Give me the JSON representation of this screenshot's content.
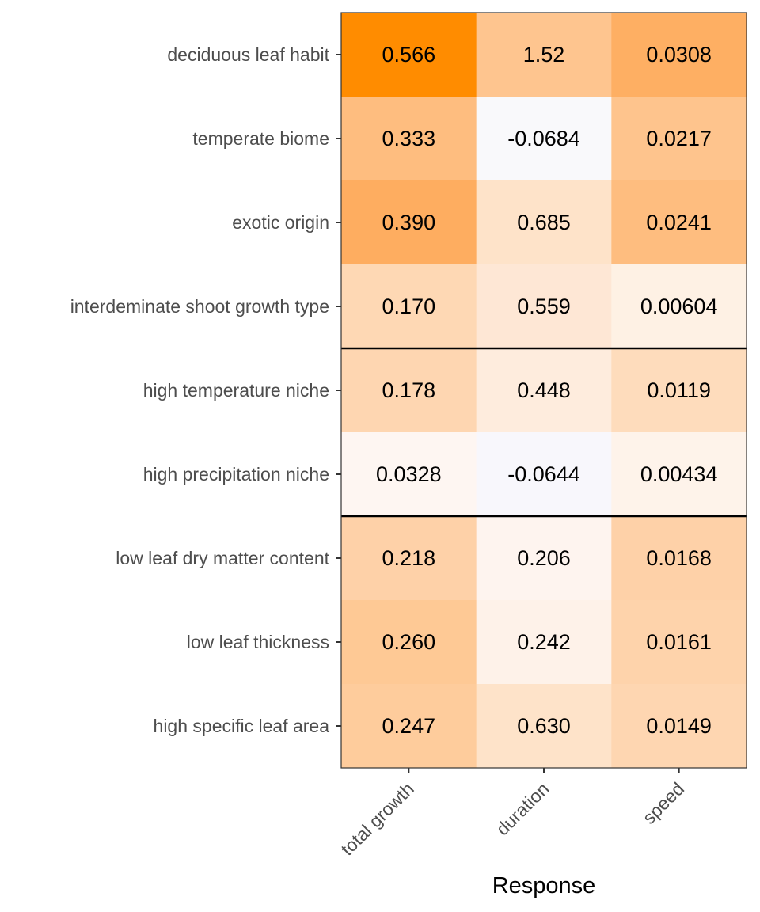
{
  "chart_data": {
    "type": "heatmap",
    "title": "",
    "xlabel": "Response",
    "ylabel": "",
    "columns": [
      "total growth",
      "duration",
      "speed"
    ],
    "rows": [
      {
        "label": "deciduous leaf habit",
        "values": [
          0.566,
          1.52,
          0.0308
        ],
        "text": [
          "0.566",
          "1.52",
          "0.0308"
        ]
      },
      {
        "label": "temperate biome",
        "values": [
          0.333,
          -0.0684,
          0.0217
        ],
        "text": [
          "0.333",
          "-0.0684",
          "0.0217"
        ]
      },
      {
        "label": "exotic origin",
        "values": [
          0.39,
          0.685,
          0.0241
        ],
        "text": [
          "0.390",
          "0.685",
          "0.0241"
        ]
      },
      {
        "label": "interdeminate shoot growth type",
        "values": [
          0.17,
          0.559,
          0.00604
        ],
        "text": [
          "0.170",
          "0.559",
          "0.00604"
        ]
      },
      {
        "label": "high temperature niche",
        "values": [
          0.178,
          0.448,
          0.0119
        ],
        "text": [
          "0.178",
          "0.448",
          "0.0119"
        ]
      },
      {
        "label": "high precipitation niche",
        "values": [
          0.0328,
          -0.0644,
          0.00434
        ],
        "text": [
          "0.0328",
          "-0.0644",
          "0.00434"
        ]
      },
      {
        "label": "low leaf dry matter content",
        "values": [
          0.218,
          0.206,
          0.0168
        ],
        "text": [
          "0.218",
          "0.206",
          "0.0168"
        ]
      },
      {
        "label": "low leaf thickness",
        "values": [
          0.26,
          0.242,
          0.0161
        ],
        "text": [
          "0.260",
          "0.242",
          "0.0161"
        ]
      },
      {
        "label": "high specific leaf area",
        "values": [
          0.247,
          0.63,
          0.0149
        ],
        "text": [
          "0.247",
          "0.630",
          "0.0149"
        ]
      }
    ],
    "group_breaks_after_rows": [
      4,
      6
    ],
    "cell_colors": [
      [
        "#ff8c00",
        "#fec58f",
        "#feaf63"
      ],
      [
        "#febd7f",
        "#f9f9fb",
        "#fec48d"
      ],
      [
        "#fead60",
        "#fee3c9",
        "#febd7f"
      ],
      [
        "#fed8b4",
        "#fee7d5",
        "#fef1e4"
      ],
      [
        "#fed6b1",
        "#feecdd",
        "#fedcbc"
      ],
      [
        "#fef6f2",
        "#f8f7fc",
        "#fef3ea"
      ],
      [
        "#fed1a8",
        "#fef4ef",
        "#fed1a8"
      ],
      [
        "#fec995",
        "#fef2e9",
        "#fed3ab"
      ],
      [
        "#fecc9c",
        "#fee3c9",
        "#fed6b1"
      ]
    ],
    "legend": "none"
  }
}
